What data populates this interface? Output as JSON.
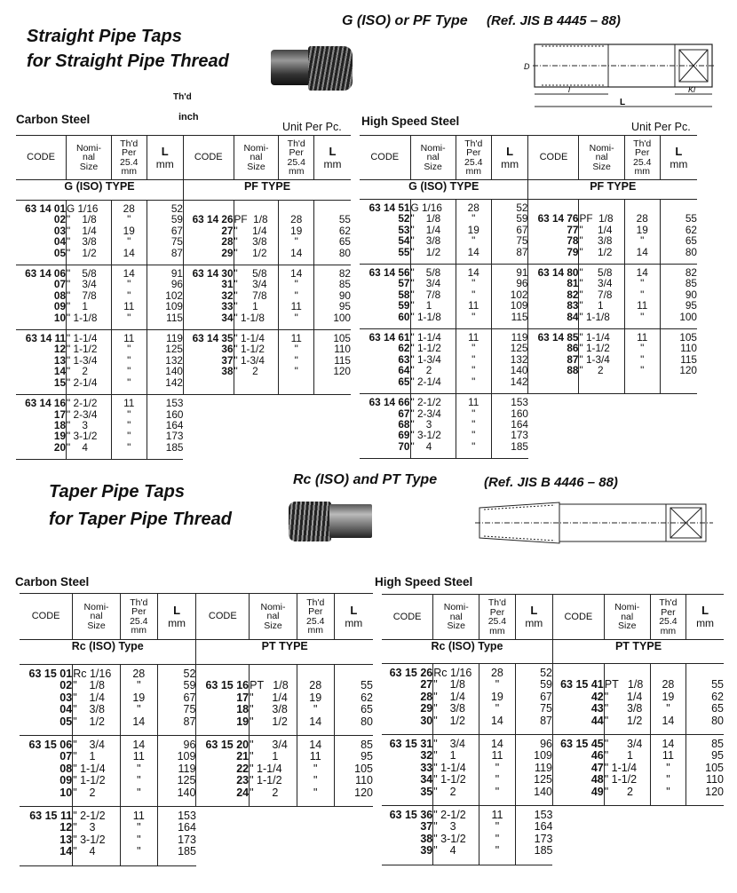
{
  "column_headers": {
    "code": "CODE",
    "nominal": "Nomi-\nnal\nSize",
    "thd": "Th'd\nPer\n25.4\nmm",
    "L": "L",
    "L_unit": "mm"
  },
  "straight": {
    "title_line1": "Straight Pipe Taps",
    "title_line2": "for Straight Pipe Thread",
    "type_heading": "G (ISO) or PF Type",
    "reference": "(Ref. JIS B 4445 – 88)",
    "thd_note": "Th'd",
    "inch_note": "inch",
    "diagram_labels": {
      "d": "D",
      "l": "l",
      "L": "L",
      "kl": "Kl"
    },
    "carbon": {
      "title": "Carbon Steel",
      "unit": "Unit Per Pc.",
      "left_type": "G (ISO) TYPE",
      "right_type": "PF TYPE",
      "groups": [
        {
          "left": {
            "code": [
              "63 14 01",
              "02",
              "03",
              "04",
              "05"
            ],
            "size": [
              "G 1/16",
              "\"    1/8",
              "\"    1/4",
              "\"    3/8",
              "\"    1/2"
            ],
            "thd": [
              "28",
              "\"",
              "19",
              "\"",
              "14"
            ],
            "L": [
              "52",
              "59",
              "67",
              "75",
              "87"
            ]
          },
          "right": {
            "code": [
              "",
              "63 14 26",
              "27",
              "28",
              "29"
            ],
            "size": [
              "",
              "PF  1/8",
              "\"     1/4",
              "\"     3/8",
              "\"     1/2"
            ],
            "thd": [
              "",
              "28",
              "19",
              "\"",
              "14"
            ],
            "L": [
              "",
              "55",
              "62",
              "65",
              "80"
            ]
          }
        },
        {
          "left": {
            "code": [
              "63 14 06",
              "07",
              "08",
              "09",
              "10"
            ],
            "size": [
              "\"    5/8",
              "\"    3/4",
              "\"    7/8",
              "\"    1",
              "\" 1-1/8"
            ],
            "thd": [
              "14",
              "\"",
              "\"",
              "11",
              "\""
            ],
            "L": [
              "91",
              "96",
              "102",
              "109",
              "115"
            ]
          },
          "right": {
            "code": [
              "63 14 30",
              "31",
              "32",
              "33",
              "34"
            ],
            "size": [
              "\"     5/8",
              "\"     3/4",
              "\"     7/8",
              "\"     1",
              "\" 1-1/8"
            ],
            "thd": [
              "14",
              "\"",
              "\"",
              "11",
              "\""
            ],
            "L": [
              "82",
              "85",
              "90",
              "95",
              "100"
            ]
          }
        },
        {
          "left": {
            "code": [
              "63 14 11",
              "12",
              "13",
              "14",
              "15"
            ],
            "size": [
              "\" 1-1/4",
              "\" 1-1/2",
              "\" 1-3/4",
              "\"    2",
              "\" 2-1/4"
            ],
            "thd": [
              "11",
              "\"",
              "\"",
              "\"",
              "\""
            ],
            "L": [
              "119",
              "125",
              "132",
              "140",
              "142"
            ]
          },
          "right": {
            "code": [
              "63 14 35",
              "36",
              "37",
              "38"
            ],
            "size": [
              "\" 1-1/4",
              "\" 1-1/2",
              "\" 1-3/4",
              "\"     2"
            ],
            "thd": [
              "11",
              "\"",
              "\"",
              "\""
            ],
            "L": [
              "105",
              "110",
              "115",
              "120"
            ]
          }
        },
        {
          "left": {
            "code": [
              "63 14 16",
              "17",
              "18",
              "19",
              "20"
            ],
            "size": [
              "\" 2-1/2",
              "\" 2-3/4",
              "\"    3",
              "\" 3-1/2",
              "\"    4"
            ],
            "thd": [
              "11",
              "\"",
              "\"",
              "\"",
              "\""
            ],
            "L": [
              "153",
              "160",
              "164",
              "173",
              "185"
            ]
          },
          "right": null
        }
      ]
    },
    "hss": {
      "title": "High Speed Steel",
      "unit": "Unit Per Pc.",
      "left_type": "G (ISO) TYPE",
      "right_type": "PF TYPE",
      "groups": [
        {
          "left": {
            "code": [
              "63 14 51",
              "52",
              "53",
              "54",
              "55"
            ],
            "size": [
              "G 1/16",
              "\"    1/8",
              "\"    1/4",
              "\"    3/8",
              "\"    1/2"
            ],
            "thd": [
              "28",
              "\"",
              "19",
              "\"",
              "14"
            ],
            "L": [
              "52",
              "59",
              "67",
              "75",
              "87"
            ]
          },
          "right": {
            "code": [
              "",
              "63 14 76",
              "77",
              "78",
              "79"
            ],
            "size": [
              "",
              "PF  1/8",
              "\"     1/4",
              "\"     3/8",
              "\"     1/2"
            ],
            "thd": [
              "",
              "28",
              "19",
              "\"",
              "14"
            ],
            "L": [
              "",
              "55",
              "62",
              "65",
              "80"
            ]
          }
        },
        {
          "left": {
            "code": [
              "63 14 56",
              "57",
              "58",
              "59",
              "60"
            ],
            "size": [
              "\"    5/8",
              "\"    3/4",
              "\"    7/8",
              "\"    1",
              "\" 1-1/8"
            ],
            "thd": [
              "14",
              "\"",
              "\"",
              "11",
              "\""
            ],
            "L": [
              "91",
              "96",
              "102",
              "109",
              "115"
            ]
          },
          "right": {
            "code": [
              "63 14 80",
              "81",
              "82",
              "83",
              "84"
            ],
            "size": [
              "\"     5/8",
              "\"     3/4",
              "\"     7/8",
              "\"     1",
              "\" 1-1/8"
            ],
            "thd": [
              "14",
              "\"",
              "\"",
              "11",
              "\""
            ],
            "L": [
              "82",
              "85",
              "90",
              "95",
              "100"
            ]
          }
        },
        {
          "left": {
            "code": [
              "63 14 61",
              "62",
              "63",
              "64",
              "65"
            ],
            "size": [
              "\" 1-1/4",
              "\" 1-1/2",
              "\" 1-3/4",
              "\"    2",
              "\" 2-1/4"
            ],
            "thd": [
              "11",
              "\"",
              "\"",
              "\"",
              "\""
            ],
            "L": [
              "119",
              "125",
              "132",
              "140",
              "142"
            ]
          },
          "right": {
            "code": [
              "63 14 85",
              "86",
              "87",
              "88"
            ],
            "size": [
              "\" 1-1/4",
              "\" 1-1/2",
              "\" 1-3/4",
              "\"     2"
            ],
            "thd": [
              "11",
              "\"",
              "\"",
              "\""
            ],
            "L": [
              "105",
              "110",
              "115",
              "120"
            ]
          }
        },
        {
          "left": {
            "code": [
              "63 14 66",
              "67",
              "68",
              "69",
              "70"
            ],
            "size": [
              "\" 2-1/2",
              "\" 2-3/4",
              "\"    3",
              "\" 3-1/2",
              "\"    4"
            ],
            "thd": [
              "11",
              "\"",
              "\"",
              "\"",
              "\""
            ],
            "L": [
              "153",
              "160",
              "164",
              "173",
              "185"
            ]
          },
          "right": null
        }
      ]
    }
  },
  "taper": {
    "title_line1": "Taper Pipe Taps",
    "title_line2": "for Taper Pipe Thread",
    "type_heading": "Rc (ISO) and PT Type",
    "reference": "(Ref. JIS B 4446 – 88)",
    "carbon": {
      "title": "Carbon Steel",
      "unit": "",
      "left_type": "Rc (ISO) Type",
      "right_type": "PT TYPE",
      "groups": [
        {
          "left": {
            "code": [
              "63 15 01",
              "02",
              "03",
              "04",
              "05"
            ],
            "size": [
              "Rc 1/16",
              "\"    1/8",
              "\"    1/4",
              "\"    3/8",
              "\"    1/2"
            ],
            "thd": [
              "28",
              "\"",
              "19",
              "\"",
              "14"
            ],
            "L": [
              "52",
              "59",
              "67",
              "75",
              "87"
            ]
          },
          "right": {
            "code": [
              "",
              "63 15 16",
              "17",
              "18",
              "19"
            ],
            "size": [
              "",
              "PT   1/8",
              "\"      1/4",
              "\"      3/8",
              "\"      1/2"
            ],
            "thd": [
              "",
              "28",
              "19",
              "\"",
              "14"
            ],
            "L": [
              "",
              "55",
              "62",
              "65",
              "80"
            ]
          }
        },
        {
          "left": {
            "code": [
              "63 15 06",
              "07",
              "08",
              "09",
              "10"
            ],
            "size": [
              "\"    3/4",
              "\"    1",
              "\" 1-1/4",
              "\" 1-1/2",
              "\"    2"
            ],
            "thd": [
              "14",
              "11",
              "\"",
              "\"",
              "\""
            ],
            "L": [
              "96",
              "109",
              "119",
              "125",
              "140"
            ]
          },
          "right": {
            "code": [
              "63 15 20",
              "21",
              "22",
              "23",
              "24"
            ],
            "size": [
              "\"      3/4",
              "\"      1",
              "\" 1-1/4",
              "\" 1-1/2",
              "\"      2"
            ],
            "thd": [
              "14",
              "11",
              "\"",
              "\"",
              "\""
            ],
            "L": [
              "85",
              "95",
              "105",
              "110",
              "120"
            ]
          }
        },
        {
          "left": {
            "code": [
              "63 15 11",
              "12",
              "13",
              "14"
            ],
            "size": [
              "\" 2-1/2",
              "\"    3",
              "\" 3-1/2",
              "\"    4"
            ],
            "thd": [
              "11",
              "\"",
              "\"",
              "\""
            ],
            "L": [
              "153",
              "164",
              "173",
              "185"
            ]
          },
          "right": null
        }
      ]
    },
    "hss": {
      "title": "High Speed Steel",
      "unit": "",
      "left_type": "Rc (ISO) Type",
      "right_type": "PT TYPE",
      "groups": [
        {
          "left": {
            "code": [
              "63 15 26",
              "27",
              "28",
              "29",
              "30"
            ],
            "size": [
              "Rc 1/16",
              "\"    1/8",
              "\"    1/4",
              "\"    3/8",
              "\"    1/2"
            ],
            "thd": [
              "28",
              "\"",
              "19",
              "\"",
              "14"
            ],
            "L": [
              "52",
              "59",
              "67",
              "75",
              "87"
            ]
          },
          "right": {
            "code": [
              "",
              "63 15 41",
              "42",
              "43",
              "44"
            ],
            "size": [
              "",
              "PT   1/8",
              "\"      1/4",
              "\"      3/8",
              "\"      1/2"
            ],
            "thd": [
              "",
              "28",
              "19",
              "\"",
              "14"
            ],
            "L": [
              "",
              "55",
              "62",
              "65",
              "80"
            ]
          }
        },
        {
          "left": {
            "code": [
              "63 15 31",
              "32",
              "33",
              "34",
              "35"
            ],
            "size": [
              "\"    3/4",
              "\"    1",
              "\" 1-1/4",
              "\" 1-1/2",
              "\"    2"
            ],
            "thd": [
              "14",
              "11",
              "\"",
              "\"",
              "\""
            ],
            "L": [
              "96",
              "109",
              "119",
              "125",
              "140"
            ]
          },
          "right": {
            "code": [
              "63 15 45",
              "46",
              "47",
              "48",
              "49"
            ],
            "size": [
              "\"      3/4",
              "\"      1",
              "\" 1-1/4",
              "\" 1-1/2",
              "\"      2"
            ],
            "thd": [
              "14",
              "11",
              "\"",
              "\"",
              "\""
            ],
            "L": [
              "85",
              "95",
              "105",
              "110",
              "120"
            ]
          }
        },
        {
          "left": {
            "code": [
              "63 15 36",
              "37",
              "38",
              "39"
            ],
            "size": [
              "\" 2-1/2",
              "\"    3",
              "\" 3-1/2",
              "\"    4"
            ],
            "thd": [
              "11",
              "\"",
              "\"",
              "\""
            ],
            "L": [
              "153",
              "164",
              "173",
              "185"
            ]
          },
          "right": null
        }
      ]
    }
  }
}
